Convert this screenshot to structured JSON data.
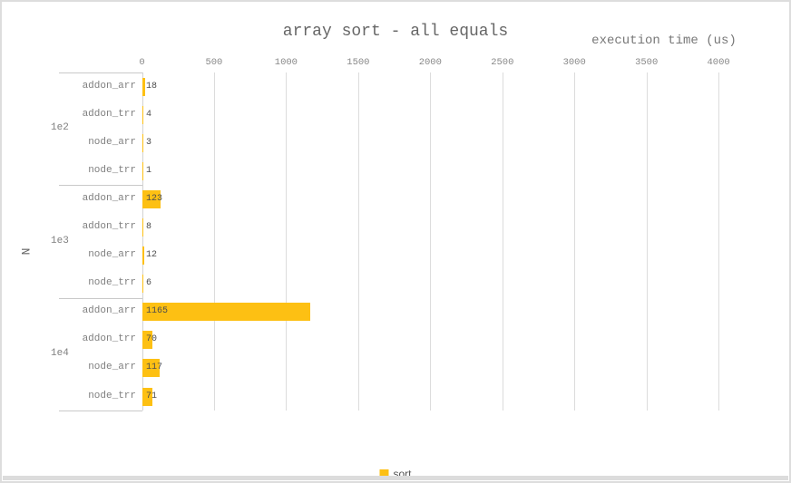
{
  "chart_data": {
    "type": "bar",
    "orientation": "horizontal",
    "title": "array sort - all equals",
    "xlabel": "execution time (us)",
    "ylabel": "N",
    "xlim": [
      0,
      4475
    ],
    "x_ticks": [
      0,
      500,
      1000,
      1500,
      2000,
      2500,
      3000,
      3500,
      4000
    ],
    "grid": true,
    "bar_color": "#fdc013",
    "groups": [
      {
        "label": "1e2",
        "rows": [
          {
            "category": "addon_arr",
            "value": 18
          },
          {
            "category": "addon_trr",
            "value": 4
          },
          {
            "category": "node_arr",
            "value": 3
          },
          {
            "category": "node_trr",
            "value": 1
          }
        ]
      },
      {
        "label": "1e3",
        "rows": [
          {
            "category": "addon_arr",
            "value": 123
          },
          {
            "category": "addon_trr",
            "value": 8
          },
          {
            "category": "node_arr",
            "value": 12
          },
          {
            "category": "node_trr",
            "value": 6
          }
        ]
      },
      {
        "label": "1e4",
        "rows": [
          {
            "category": "addon_arr",
            "value": 1165
          },
          {
            "category": "addon_trr",
            "value": 70
          },
          {
            "category": "node_arr",
            "value": 117
          },
          {
            "category": "node_trr",
            "value": 71
          }
        ]
      }
    ],
    "legend": [
      {
        "label": "sort",
        "color": "#fdc013"
      }
    ],
    "legend_position": "bottom-center"
  },
  "colors": {
    "gridline": "#dcdcdc",
    "divider": "#c9c9c9",
    "title_text": "#666666",
    "tick_text": "#888888",
    "category_text": "#7f7f7f",
    "value_text": "#4d4d4d",
    "window_border": "#dddddd",
    "scrollbar": "#dcdcdc"
  }
}
